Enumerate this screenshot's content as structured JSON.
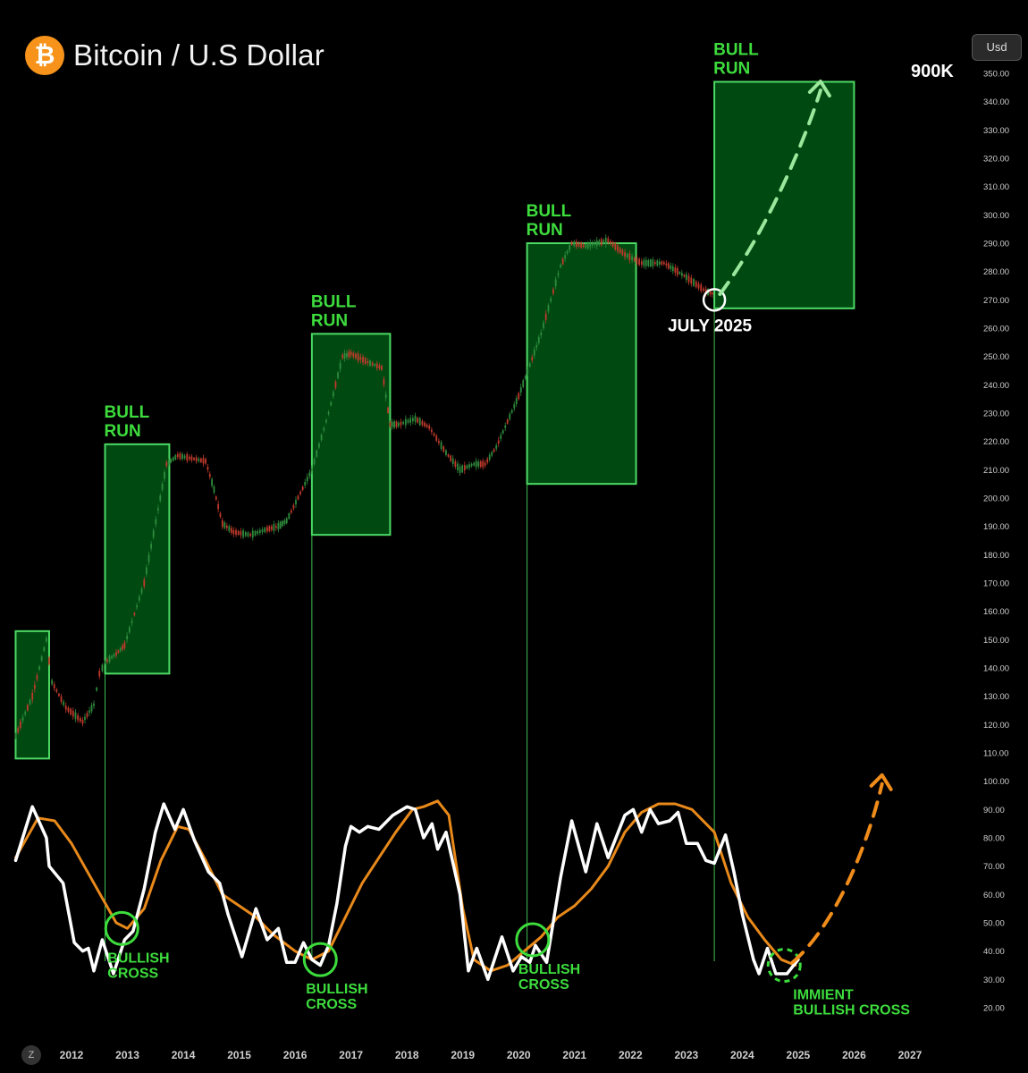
{
  "header": {
    "title": "Bitcoin / U.S Dollar",
    "logo_glyph": "₿",
    "currency_button": "Usd",
    "z_button": "Z"
  },
  "colors": {
    "background": "#000000",
    "bull_box_fill": "#004a12",
    "bull_box_stroke": "#4cd964",
    "annotation_green": "#3ddc3d",
    "candle_up": "#2e8b3c",
    "candle_down": "#c0392b",
    "fast_line": "#ffffff",
    "slow_line": "#e8891a",
    "projection_green": "#9be79b",
    "projection_orange": "#f08c1a"
  },
  "chart_data": {
    "type": "line",
    "x_ticks": [
      "2012",
      "2013",
      "2014",
      "2015",
      "2016",
      "2017",
      "2018",
      "2019",
      "2020",
      "2021",
      "2022",
      "2023",
      "2024",
      "2025",
      "2026",
      "2027"
    ],
    "y_ticks": [
      "350.00",
      "340.00",
      "330.00",
      "320.00",
      "310.00",
      "300.00",
      "290.00",
      "280.00",
      "270.00",
      "260.00",
      "250.00",
      "240.00",
      "230.00",
      "220.00",
      "210.00",
      "200.00",
      "190.00",
      "180.00",
      "170.00",
      "160.00",
      "150.00",
      "140.00",
      "130.00",
      "120.00",
      "110.00",
      "100.00",
      "90.00",
      "80.00",
      "70.00",
      "60.00",
      "50.00",
      "40.00",
      "30.00",
      "20.00"
    ],
    "ylim": [
      20,
      350
    ],
    "price_path": [
      [
        2011.0,
        116
      ],
      [
        2011.3,
        130
      ],
      [
        2011.55,
        150
      ],
      [
        2011.65,
        135
      ],
      [
        2011.9,
        126
      ],
      [
        2012.2,
        121
      ],
      [
        2012.4,
        127
      ],
      [
        2012.5,
        138
      ],
      [
        2012.6,
        142
      ],
      [
        2012.8,
        145
      ],
      [
        2012.95,
        148
      ],
      [
        2013.3,
        170
      ],
      [
        2013.55,
        196
      ],
      [
        2013.7,
        212
      ],
      [
        2013.9,
        215
      ],
      [
        2014.15,
        214
      ],
      [
        2014.4,
        213
      ],
      [
        2014.55,
        203
      ],
      [
        2014.7,
        191
      ],
      [
        2014.9,
        188
      ],
      [
        2015.2,
        187
      ],
      [
        2015.5,
        189
      ],
      [
        2015.7,
        190
      ],
      [
        2015.85,
        192
      ],
      [
        2016.3,
        210
      ],
      [
        2016.6,
        230
      ],
      [
        2016.85,
        250
      ],
      [
        2017.0,
        251
      ],
      [
        2017.3,
        248
      ],
      [
        2017.55,
        246
      ],
      [
        2017.7,
        226
      ],
      [
        2017.85,
        226
      ],
      [
        2018.15,
        228
      ],
      [
        2018.4,
        225
      ],
      [
        2018.7,
        216
      ],
      [
        2018.95,
        210
      ],
      [
        2019.2,
        212
      ],
      [
        2019.4,
        212
      ],
      [
        2019.6,
        218
      ],
      [
        2020.0,
        236
      ],
      [
        2020.4,
        258
      ],
      [
        2020.75,
        282
      ],
      [
        2020.95,
        290
      ],
      [
        2021.2,
        289
      ],
      [
        2021.6,
        291
      ],
      [
        2021.9,
        286
      ],
      [
        2022.2,
        283
      ],
      [
        2022.6,
        283
      ],
      [
        2023.0,
        278
      ],
      [
        2023.35,
        273
      ],
      [
        2023.5,
        272
      ]
    ],
    "bull_runs": [
      {
        "x0": 2011.0,
        "x1": 2011.6,
        "y0": 108,
        "y1": 153
      },
      {
        "x0": 2012.6,
        "x1": 2013.75,
        "y0": 138,
        "y1": 219,
        "label": [
          "BULL",
          "RUN"
        ]
      },
      {
        "x0": 2016.3,
        "x1": 2017.7,
        "y0": 187,
        "y1": 258,
        "label": [
          "BULL",
          "RUN"
        ]
      },
      {
        "x0": 2020.15,
        "x1": 2022.1,
        "y0": 205,
        "y1": 290,
        "label": [
          "BULL",
          "RUN"
        ]
      },
      {
        "x0": 2023.5,
        "x1": 2026.0,
        "y0": 267,
        "y1": 347,
        "label": [
          "BULL",
          "RUN"
        ]
      }
    ],
    "fast_series": [
      [
        2011.0,
        72
      ],
      [
        2011.3,
        91
      ],
      [
        2011.55,
        80
      ],
      [
        2011.6,
        70
      ],
      [
        2011.85,
        64
      ],
      [
        2012.05,
        43
      ],
      [
        2012.2,
        40
      ],
      [
        2012.3,
        41
      ],
      [
        2012.4,
        33
      ],
      [
        2012.55,
        44
      ],
      [
        2012.75,
        32
      ],
      [
        2012.95,
        44
      ],
      [
        2013.1,
        47
      ],
      [
        2013.3,
        62
      ],
      [
        2013.5,
        82
      ],
      [
        2013.65,
        92
      ],
      [
        2013.85,
        83
      ],
      [
        2014.0,
        90
      ],
      [
        2014.2,
        79
      ],
      [
        2014.45,
        68
      ],
      [
        2014.65,
        64
      ],
      [
        2014.8,
        53
      ],
      [
        2014.95,
        44
      ],
      [
        2015.05,
        38
      ],
      [
        2015.3,
        55
      ],
      [
        2015.5,
        44
      ],
      [
        2015.7,
        48
      ],
      [
        2015.85,
        36
      ],
      [
        2016.0,
        36
      ],
      [
        2016.15,
        43
      ],
      [
        2016.3,
        37
      ],
      [
        2016.45,
        35
      ],
      [
        2016.6,
        42
      ],
      [
        2016.75,
        57
      ],
      [
        2016.9,
        77
      ],
      [
        2017.0,
        84
      ],
      [
        2017.15,
        82
      ],
      [
        2017.3,
        84
      ],
      [
        2017.5,
        83
      ],
      [
        2017.75,
        88
      ],
      [
        2018.0,
        91
      ],
      [
        2018.15,
        90
      ],
      [
        2018.3,
        80
      ],
      [
        2018.45,
        85
      ],
      [
        2018.55,
        76
      ],
      [
        2018.7,
        82
      ],
      [
        2018.95,
        60
      ],
      [
        2019.1,
        33
      ],
      [
        2019.25,
        41
      ],
      [
        2019.45,
        30
      ],
      [
        2019.7,
        45
      ],
      [
        2019.9,
        33
      ],
      [
        2020.05,
        38
      ],
      [
        2020.2,
        36
      ],
      [
        2020.3,
        42
      ],
      [
        2020.5,
        36
      ],
      [
        2020.75,
        66
      ],
      [
        2020.95,
        86
      ],
      [
        2021.2,
        68
      ],
      [
        2021.4,
        85
      ],
      [
        2021.6,
        73
      ],
      [
        2021.9,
        88
      ],
      [
        2022.05,
        90
      ],
      [
        2022.2,
        82
      ],
      [
        2022.35,
        90
      ],
      [
        2022.5,
        85
      ],
      [
        2022.7,
        86
      ],
      [
        2022.85,
        89
      ],
      [
        2023.0,
        78
      ],
      [
        2023.2,
        78
      ],
      [
        2023.35,
        72
      ],
      [
        2023.5,
        71
      ],
      [
        2023.7,
        81
      ],
      [
        2023.85,
        68
      ],
      [
        2024.0,
        53
      ],
      [
        2024.2,
        37
      ],
      [
        2024.3,
        32
      ],
      [
        2024.45,
        41
      ],
      [
        2024.6,
        32
      ],
      [
        2024.8,
        32
      ],
      [
        2025.0,
        37
      ]
    ],
    "slow_series": [
      [
        2011.0,
        73
      ],
      [
        2011.4,
        87
      ],
      [
        2011.7,
        86
      ],
      [
        2012.0,
        78
      ],
      [
        2012.4,
        64
      ],
      [
        2012.8,
        50
      ],
      [
        2013.0,
        48
      ],
      [
        2013.3,
        55
      ],
      [
        2013.6,
        72
      ],
      [
        2013.9,
        84
      ],
      [
        2014.1,
        83
      ],
      [
        2014.4,
        72
      ],
      [
        2014.7,
        60
      ],
      [
        2015.0,
        56
      ],
      [
        2015.3,
        52
      ],
      [
        2015.6,
        46
      ],
      [
        2016.0,
        40
      ],
      [
        2016.3,
        37
      ],
      [
        2016.6,
        40
      ],
      [
        2016.9,
        52
      ],
      [
        2017.2,
        64
      ],
      [
        2017.5,
        73
      ],
      [
        2017.8,
        82
      ],
      [
        2018.1,
        90
      ],
      [
        2018.3,
        91
      ],
      [
        2018.55,
        93
      ],
      [
        2018.75,
        88
      ],
      [
        2019.0,
        55
      ],
      [
        2019.2,
        37
      ],
      [
        2019.5,
        33
      ],
      [
        2019.8,
        35
      ],
      [
        2020.1,
        40
      ],
      [
        2020.4,
        45
      ],
      [
        2020.7,
        52
      ],
      [
        2021.0,
        56
      ],
      [
        2021.3,
        62
      ],
      [
        2021.6,
        70
      ],
      [
        2021.9,
        82
      ],
      [
        2022.2,
        89
      ],
      [
        2022.5,
        92
      ],
      [
        2022.8,
        92
      ],
      [
        2023.1,
        90
      ],
      [
        2023.5,
        82
      ],
      [
        2023.8,
        64
      ],
      [
        2024.1,
        52
      ],
      [
        2024.4,
        44
      ],
      [
        2024.7,
        37
      ],
      [
        2024.95,
        35
      ]
    ],
    "bullish_cross_markers": [
      {
        "x": 2012.9,
        "y": 48,
        "label": [
          "BULLISH",
          "CROSS"
        ]
      },
      {
        "x": 2016.45,
        "y": 37,
        "label": [
          "BULLISH",
          "CROSS"
        ]
      },
      {
        "x": 2020.25,
        "y": 44,
        "label": [
          "BULLISH",
          "CROSS"
        ]
      },
      {
        "x": 2024.75,
        "y": 35,
        "label": [
          "IMMIENT",
          "BULLISH CROSS"
        ],
        "dashed": true
      }
    ],
    "price_marker": {
      "x": 2023.5,
      "y": 270,
      "label": "JULY 2025"
    },
    "target_label": "900K",
    "projection_price": [
      [
        2023.6,
        272
      ],
      [
        2024.4,
        293
      ],
      [
        2025.1,
        325
      ],
      [
        2025.4,
        344
      ]
    ],
    "projection_oscillator": [
      [
        2024.9,
        36
      ],
      [
        2025.6,
        48
      ],
      [
        2026.2,
        74
      ],
      [
        2026.5,
        99
      ]
    ]
  }
}
